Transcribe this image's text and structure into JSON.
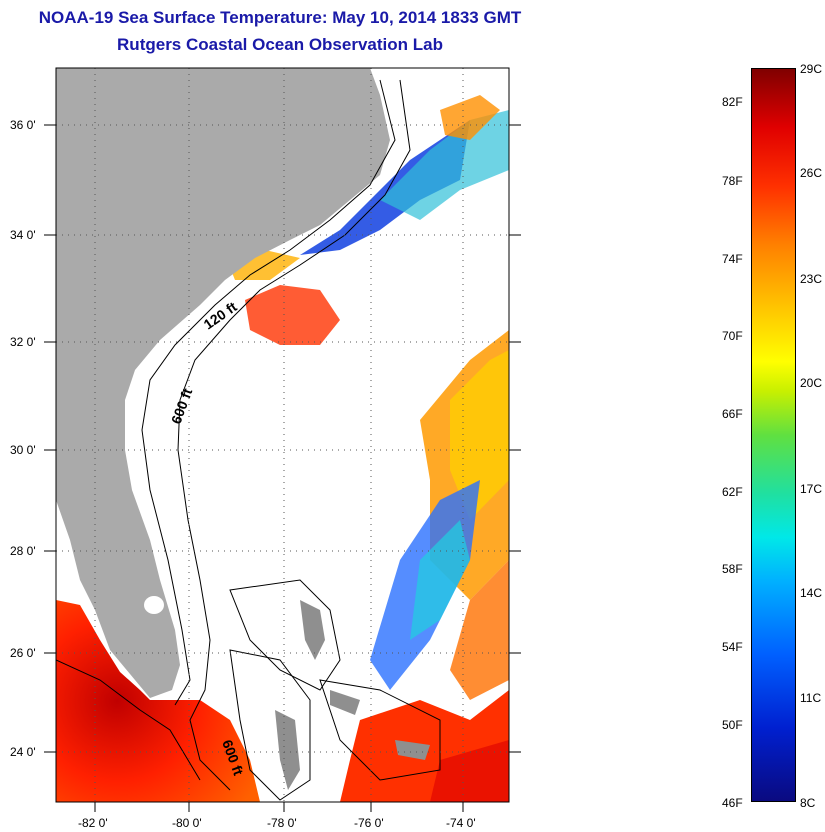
{
  "header": {
    "title": "NOAA-19 Sea Surface Temperature:  May 10, 2014 1833 GMT",
    "subtitle": "Rutgers Coastal Ocean Observation Lab"
  },
  "map": {
    "lat_labels": [
      "36 0'",
      "34 0'",
      "32 0'",
      "30 0'",
      "28 0'",
      "26 0'",
      "24 0'"
    ],
    "lon_labels": [
      "-82 0'",
      "-80 0'",
      "-78 0'",
      "-76 0'",
      "-74 0'"
    ],
    "contour_labels": [
      "120 ft",
      "600 ft",
      "600 ft"
    ],
    "colors": {
      "land": "#aaaaaa",
      "ocean_missing": "#ffffff",
      "title": "#1a1aa8"
    }
  },
  "colorbar": {
    "celsius": [
      "29C",
      "26C",
      "23C",
      "20C",
      "17C",
      "14C",
      "11C",
      "8C"
    ],
    "fahrenheit": [
      "82F",
      "78F",
      "74F",
      "70F",
      "66F",
      "62F",
      "58F",
      "54F",
      "50F",
      "46F"
    ],
    "range_c": [
      8,
      29
    ]
  }
}
